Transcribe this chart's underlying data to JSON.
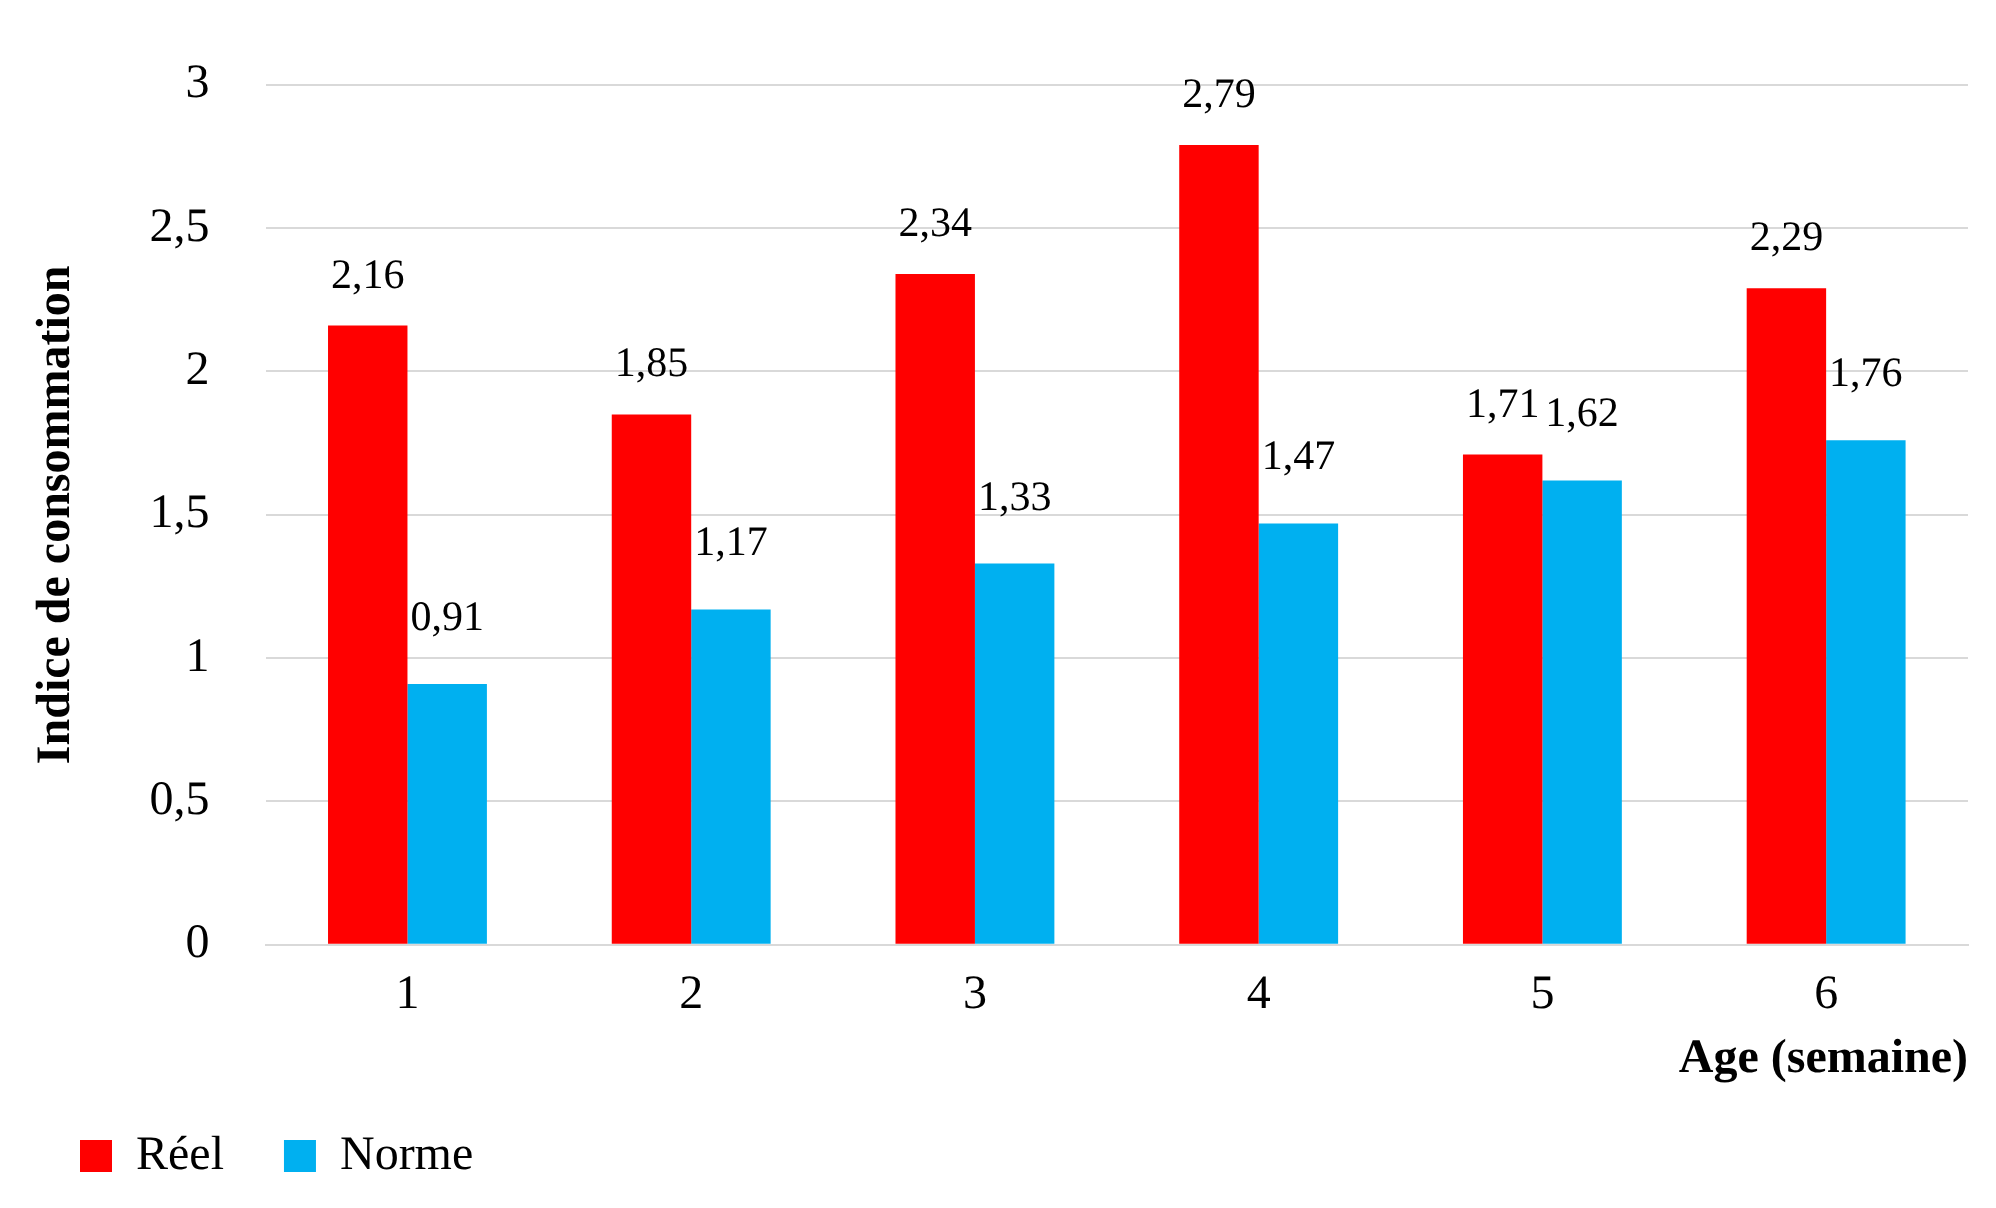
{
  "chart_data": {
    "type": "bar",
    "xlabel": "Age (semaine)",
    "ylabel": "Indice de consommation",
    "categories": [
      "1",
      "2",
      "3",
      "4",
      "5",
      "6"
    ],
    "series": [
      {
        "name": "Réel",
        "color": "#ff0000",
        "values": [
          2.16,
          1.85,
          2.34,
          2.79,
          1.71,
          2.29
        ],
        "value_labels": [
          "2,16",
          "1,85",
          "2,34",
          "2,79",
          "1,71",
          "2,29"
        ]
      },
      {
        "name": "Norme",
        "color": "#00b0f0",
        "values": [
          0.91,
          1.17,
          1.33,
          1.47,
          1.62,
          1.76
        ],
        "value_labels": [
          "0,91",
          "1,17",
          "1,33",
          "1,47",
          "1,62",
          "1,76"
        ]
      }
    ],
    "ylim": [
      0,
      3
    ],
    "yticks": [
      0,
      {
        "value": 0.5,
        "label": "0,5"
      },
      1,
      {
        "value": 1.5,
        "label": "1,5"
      },
      2,
      {
        "value": 2.5,
        "label": "2,5"
      },
      3
    ],
    "grid": "y",
    "legend": "bottom left"
  }
}
